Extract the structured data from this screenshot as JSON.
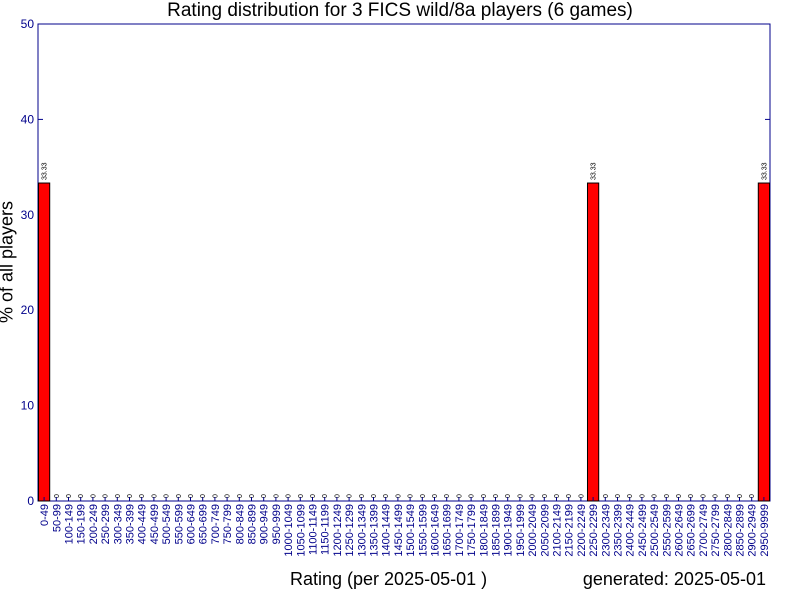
{
  "colors": {
    "text": "#00008B",
    "bar": "#FF0000",
    "axis": "#00008B",
    "background": "#FFFFFF"
  },
  "footer": {
    "generated": "generated: 2025-05-01"
  },
  "chart_data": {
    "type": "bar",
    "title": "Rating distribution for 3 FICS wild/8a players (6 games)",
    "xlabel": "Rating (per 2025-05-01 )",
    "ylabel": "% of all players",
    "ylim": [
      0,
      50
    ],
    "yticks": [
      0,
      10,
      20,
      30,
      40,
      50
    ],
    "grid": false,
    "categories": [
      "0-49",
      "50-99",
      "100-149",
      "150-199",
      "200-249",
      "250-299",
      "300-349",
      "350-399",
      "400-449",
      "450-499",
      "500-549",
      "550-599",
      "600-649",
      "650-699",
      "700-749",
      "750-799",
      "800-849",
      "850-899",
      "900-949",
      "950-999",
      "1000-1049",
      "1050-1099",
      "1100-1149",
      "1150-1199",
      "1200-1249",
      "1250-1299",
      "1300-1349",
      "1350-1399",
      "1400-1449",
      "1450-1499",
      "1500-1549",
      "1550-1599",
      "1600-1649",
      "1650-1699",
      "1700-1749",
      "1750-1799",
      "1800-1849",
      "1850-1899",
      "1900-1949",
      "1950-1999",
      "2000-2049",
      "2050-2099",
      "2100-2149",
      "2150-2199",
      "2200-2249",
      "2250-2299",
      "2300-2349",
      "2350-2399",
      "2400-2449",
      "2450-2499",
      "2500-2549",
      "2550-2599",
      "2600-2649",
      "2650-2699",
      "2700-2749",
      "2750-2799",
      "2800-2849",
      "2850-2899",
      "2900-2949",
      "2950-9999"
    ],
    "values": [
      33.33,
      0,
      0,
      0,
      0,
      0,
      0,
      0,
      0,
      0,
      0,
      0,
      0,
      0,
      0,
      0,
      0,
      0,
      0,
      0,
      0,
      0,
      0,
      0,
      0,
      0,
      0,
      0,
      0,
      0,
      0,
      0,
      0,
      0,
      0,
      0,
      0,
      0,
      0,
      0,
      0,
      0,
      0,
      0,
      0,
      33.33,
      0,
      0,
      0,
      0,
      0,
      0,
      0,
      0,
      0,
      0,
      0,
      0,
      0,
      33.33
    ],
    "data_labels": [
      "33.33",
      "0",
      "0",
      "0",
      "0",
      "0",
      "0",
      "0",
      "0",
      "0",
      "0",
      "0",
      "0",
      "0",
      "0",
      "0",
      "0",
      "0",
      "0",
      "0",
      "0",
      "0",
      "0",
      "0",
      "0",
      "0",
      "0",
      "0",
      "0",
      "0",
      "0",
      "0",
      "0",
      "0",
      "0",
      "0",
      "0",
      "0",
      "0",
      "0",
      "0",
      "0",
      "0",
      "0",
      "0",
      "33.33",
      "0",
      "0",
      "0",
      "0",
      "0",
      "0",
      "0",
      "0",
      "0",
      "0",
      "0",
      "0",
      "0",
      "33.33"
    ]
  }
}
